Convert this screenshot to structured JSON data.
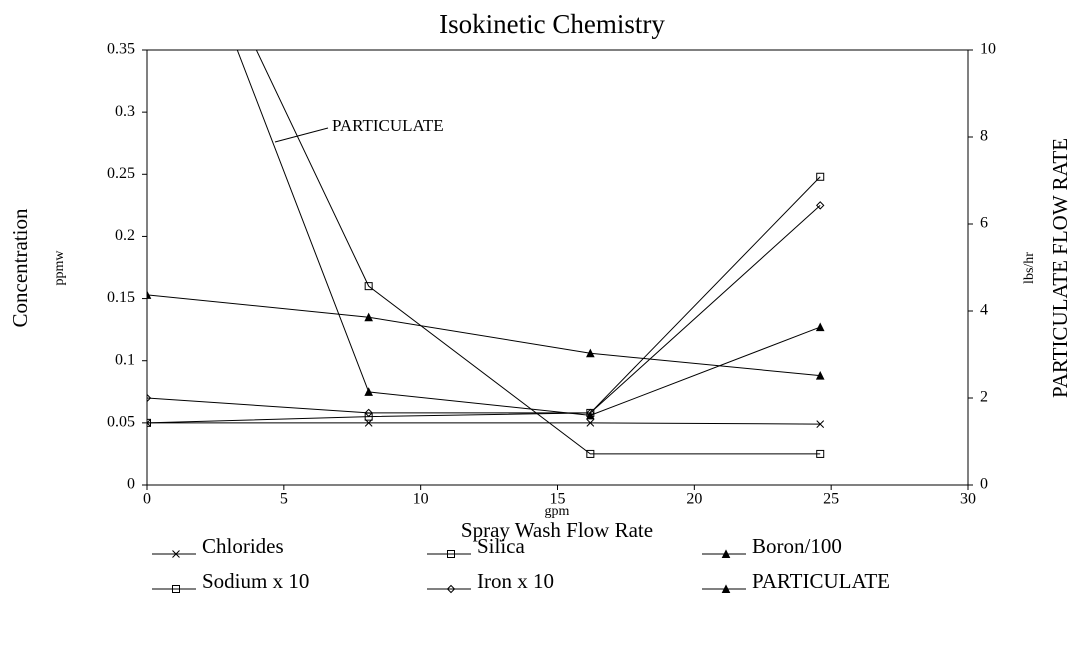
{
  "chart_data": {
    "type": "line",
    "title": "Isokinetic Chemistry",
    "x_label_unit": "gpm",
    "x_label": "Spray Wash Flow Rate",
    "y_label": "Concentration",
    "y_label_unit": "ppmw",
    "y2_label": "PARTICULATE FLOW RATE",
    "y2_label_unit": "lbs/hr",
    "annotation": "PARTICULATE",
    "x": [
      0,
      8.1,
      16.2,
      24.6
    ],
    "xlim": [
      0,
      30
    ],
    "xticks": [
      0,
      5,
      10,
      15,
      20,
      25,
      30
    ],
    "ylim": [
      0,
      0.35
    ],
    "yticks": [
      0,
      0.05,
      0.1,
      0.15,
      0.2,
      0.25,
      0.3,
      0.35
    ],
    "y2lim": [
      0,
      10
    ],
    "y2ticks": [
      0,
      2,
      4,
      6,
      8,
      10
    ],
    "series": [
      {
        "name": "Chlorides",
        "color": "#000000",
        "marker": "x",
        "values": [
          0.05,
          0.05,
          0.05,
          0.049
        ]
      },
      {
        "name": "Silica",
        "color": "#000000",
        "marker": "square",
        "values": [
          0.535,
          0.16,
          0.025,
          0.025
        ]
      },
      {
        "name": "Boron/100",
        "color": "#000000",
        "marker": "triangle",
        "values": [
          0.153,
          0.135,
          0.106,
          0.088
        ]
      },
      {
        "name": "Sodium x 10",
        "color": "#000000",
        "marker": "square",
        "values": [
          0.05,
          0.055,
          0.058,
          0.248
        ]
      },
      {
        "name": "Iron x 10",
        "color": "#000000",
        "marker": "diamond",
        "values": [
          0.07,
          0.058,
          0.058,
          0.225
        ]
      },
      {
        "name": "PARTICULATE",
        "color": "#000000",
        "marker": "triangle",
        "axis": "y2",
        "values": [
          15.4,
          2.14,
          1.6,
          3.63
        ]
      }
    ]
  }
}
